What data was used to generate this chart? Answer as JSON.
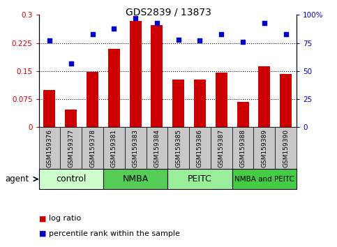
{
  "title": "GDS2839 / 13873",
  "samples": [
    "GSM159376",
    "GSM159377",
    "GSM159378",
    "GSM159381",
    "GSM159383",
    "GSM159384",
    "GSM159385",
    "GSM159386",
    "GSM159387",
    "GSM159388",
    "GSM159389",
    "GSM159390"
  ],
  "log_ratio": [
    0.1,
    0.047,
    0.147,
    0.21,
    0.284,
    0.272,
    0.127,
    0.127,
    0.145,
    0.068,
    0.163,
    0.143
  ],
  "percentile_rank": [
    77,
    57,
    83,
    88,
    97,
    93,
    78,
    77,
    83,
    76,
    93,
    83
  ],
  "groups": [
    {
      "label": "control",
      "start": 0,
      "end": 3,
      "color": "#ccffcc"
    },
    {
      "label": "NMBA",
      "start": 3,
      "end": 6,
      "color": "#55cc55"
    },
    {
      "label": "PEITC",
      "start": 6,
      "end": 9,
      "color": "#99ee99"
    },
    {
      "label": "NMBA and PEITC",
      "start": 9,
      "end": 12,
      "color": "#44cc44"
    }
  ],
  "bar_color": "#cc0000",
  "dot_color": "#0000cc",
  "ylim_left": [
    0,
    0.3
  ],
  "ylim_right": [
    0,
    100
  ],
  "yticks_left": [
    0,
    0.075,
    0.15,
    0.225,
    0.3
  ],
  "yticks_right": [
    0,
    25,
    50,
    75,
    100
  ],
  "ytick_labels_left": [
    "0",
    "0.075",
    "0.15",
    "0.225",
    "0.3"
  ],
  "ytick_labels_right": [
    "0",
    "25",
    "50",
    "75",
    "100%"
  ],
  "hlines": [
    0.075,
    0.15,
    0.225
  ],
  "legend_bar_label": "log ratio",
  "legend_dot_label": "percentile rank within the sample",
  "agent_label": "agent",
  "bar_width": 0.55,
  "bar_color_rgb": "#cc0000",
  "dot_color_rgb": "#0000cc",
  "title_fontsize": 10,
  "tick_fontsize": 7.5,
  "sample_fontsize": 6.5,
  "group_label_fontsize": 9,
  "legend_fontsize": 8,
  "bg_gray": "#c8c8c8"
}
